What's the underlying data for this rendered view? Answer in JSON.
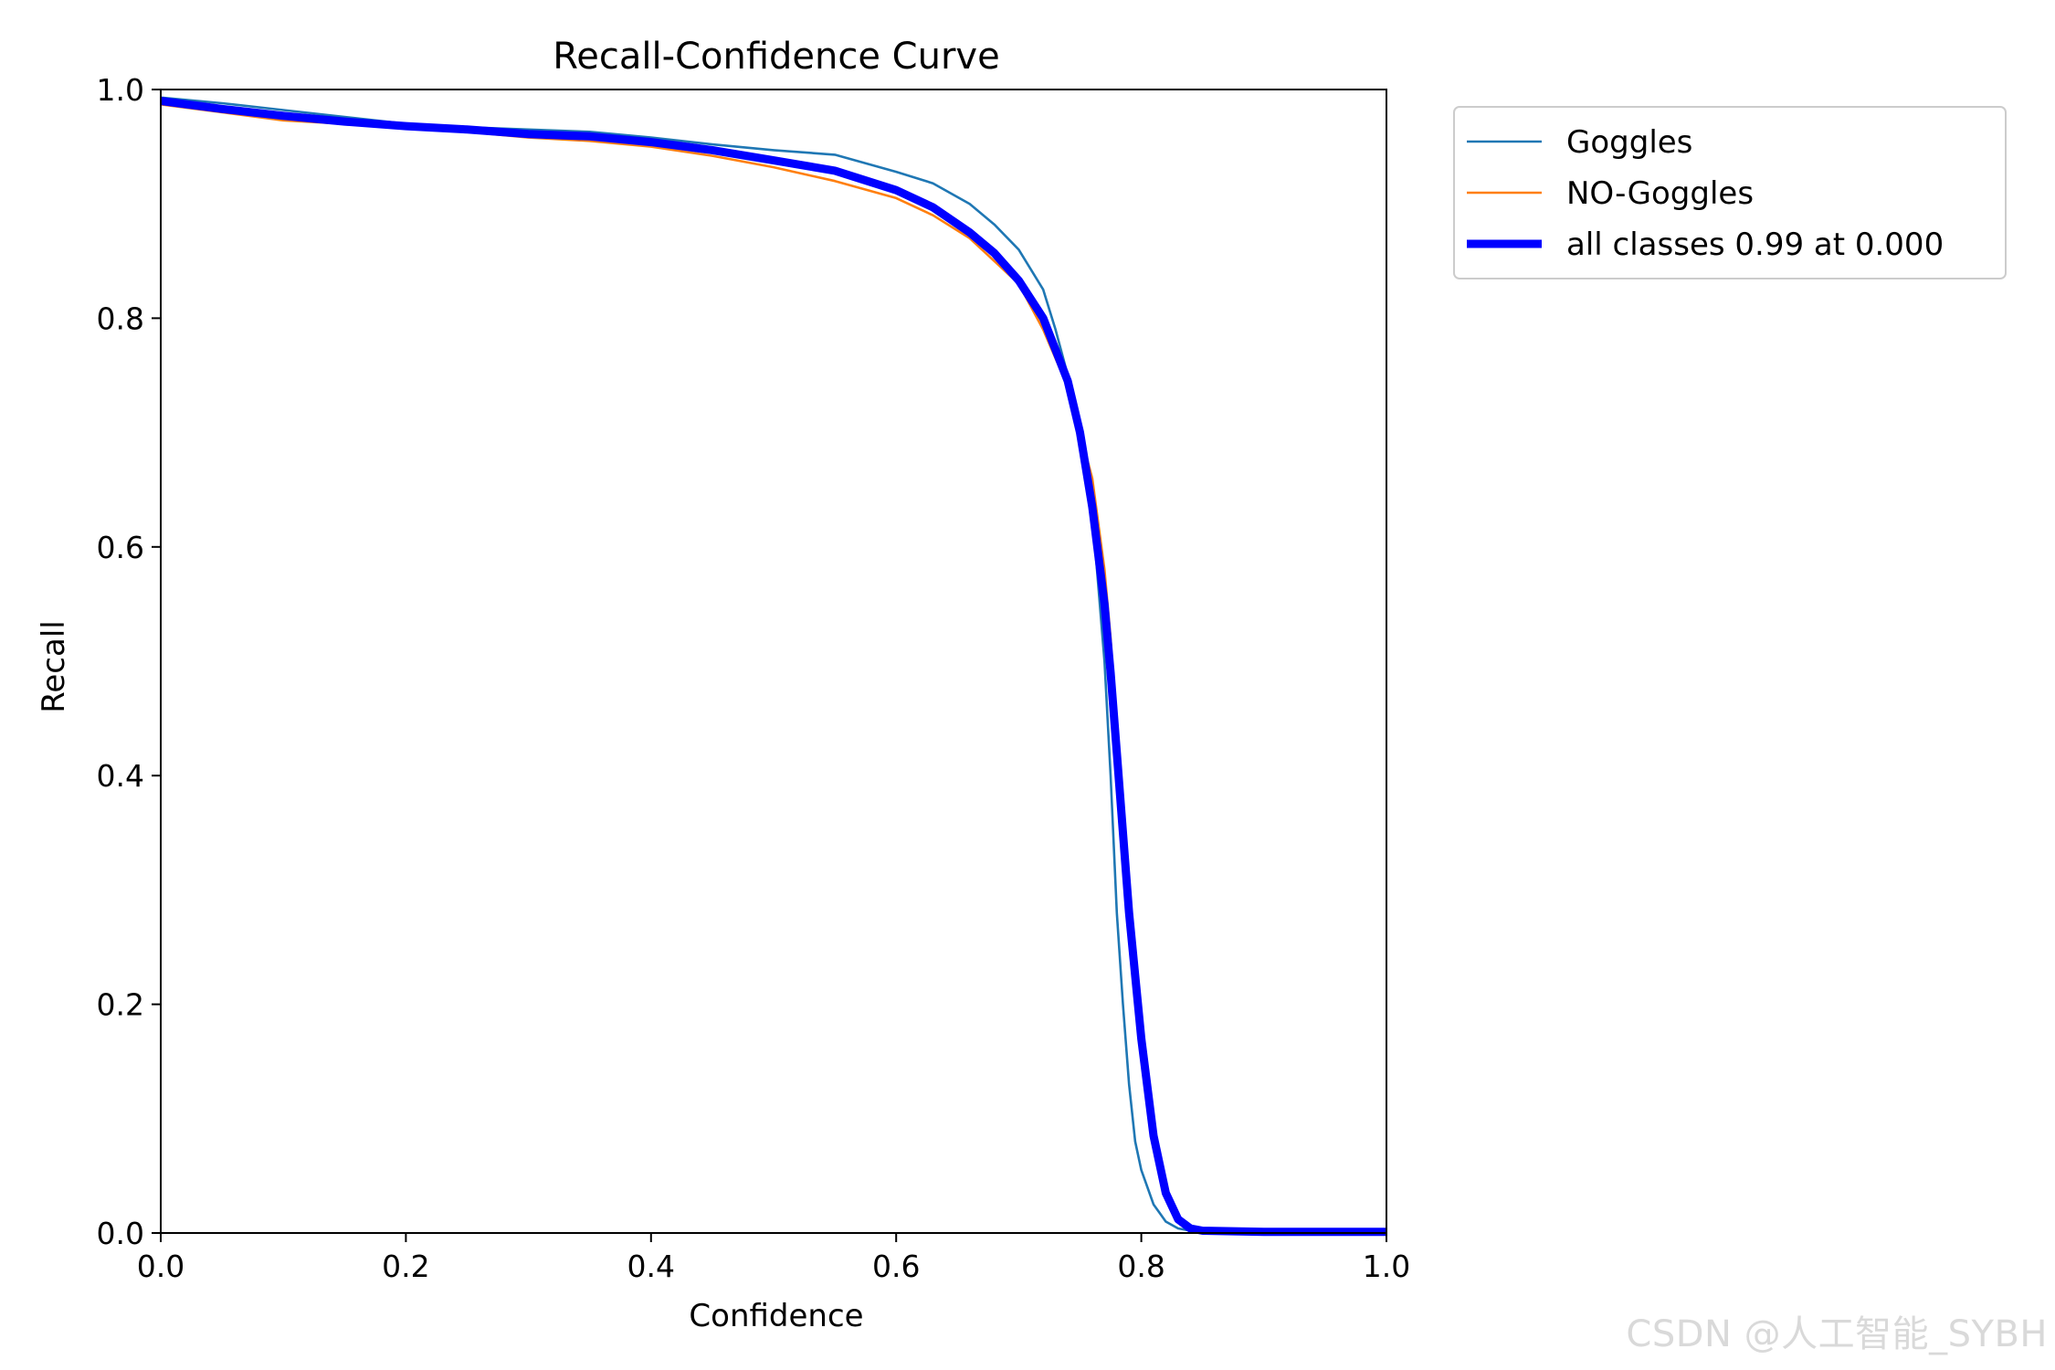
{
  "watermark": "CSDN @人工智能_SYBH",
  "chart_data": {
    "type": "line",
    "title": "Recall-Confidence Curve",
    "xlabel": "Confidence",
    "ylabel": "Recall",
    "xlim": [
      0.0,
      1.0
    ],
    "ylim": [
      0.0,
      1.0
    ],
    "xticks": [
      "0.0",
      "0.2",
      "0.4",
      "0.6",
      "0.8",
      "1.0"
    ],
    "yticks": [
      "0.0",
      "0.2",
      "0.4",
      "0.6",
      "0.8",
      "1.0"
    ],
    "grid": false,
    "legend_position": "outside-top-right",
    "series": [
      {
        "name": "Goggles",
        "color": "#1f77b4",
        "style": "thin",
        "x": [
          0.0,
          0.05,
          0.1,
          0.15,
          0.2,
          0.25,
          0.3,
          0.35,
          0.4,
          0.45,
          0.5,
          0.55,
          0.6,
          0.63,
          0.66,
          0.68,
          0.7,
          0.72,
          0.73,
          0.74,
          0.75,
          0.76,
          0.77,
          0.775,
          0.78,
          0.785,
          0.79,
          0.795,
          0.8,
          0.81,
          0.82,
          0.83,
          0.84,
          0.9,
          1.0
        ],
        "y": [
          0.993,
          0.988,
          0.982,
          0.976,
          0.97,
          0.967,
          0.965,
          0.963,
          0.958,
          0.952,
          0.947,
          0.943,
          0.928,
          0.918,
          0.9,
          0.882,
          0.86,
          0.825,
          0.79,
          0.75,
          0.71,
          0.63,
          0.5,
          0.4,
          0.28,
          0.2,
          0.13,
          0.08,
          0.055,
          0.025,
          0.01,
          0.004,
          0.002,
          0.0,
          0.0
        ]
      },
      {
        "name": "NO-Goggles",
        "color": "#ff7f0e",
        "style": "thin",
        "x": [
          0.0,
          0.05,
          0.1,
          0.15,
          0.2,
          0.25,
          0.3,
          0.35,
          0.4,
          0.45,
          0.5,
          0.55,
          0.6,
          0.63,
          0.66,
          0.68,
          0.7,
          0.72,
          0.74,
          0.75,
          0.76,
          0.77,
          0.775,
          0.78,
          0.785,
          0.79,
          0.8,
          0.81,
          0.82,
          0.83,
          0.84,
          0.9,
          1.0
        ],
        "y": [
          0.987,
          0.98,
          0.973,
          0.97,
          0.966,
          0.963,
          0.958,
          0.955,
          0.95,
          0.942,
          0.932,
          0.92,
          0.905,
          0.89,
          0.87,
          0.85,
          0.83,
          0.79,
          0.74,
          0.7,
          0.66,
          0.58,
          0.52,
          0.43,
          0.35,
          0.27,
          0.16,
          0.08,
          0.035,
          0.012,
          0.004,
          0.0,
          0.0
        ]
      },
      {
        "name": "all classes 0.99 at 0.000",
        "color": "#0000ff",
        "style": "thick",
        "x": [
          0.0,
          0.05,
          0.1,
          0.15,
          0.2,
          0.25,
          0.3,
          0.35,
          0.4,
          0.45,
          0.5,
          0.55,
          0.6,
          0.63,
          0.66,
          0.68,
          0.7,
          0.72,
          0.74,
          0.75,
          0.76,
          0.77,
          0.775,
          0.78,
          0.785,
          0.79,
          0.8,
          0.81,
          0.82,
          0.83,
          0.84,
          0.85,
          0.9,
          1.0
        ],
        "y": [
          0.99,
          0.983,
          0.977,
          0.972,
          0.968,
          0.965,
          0.961,
          0.959,
          0.954,
          0.947,
          0.938,
          0.929,
          0.912,
          0.897,
          0.875,
          0.857,
          0.833,
          0.8,
          0.745,
          0.7,
          0.635,
          0.55,
          0.49,
          0.42,
          0.35,
          0.28,
          0.17,
          0.085,
          0.035,
          0.012,
          0.004,
          0.002,
          0.001,
          0.001
        ]
      }
    ]
  }
}
